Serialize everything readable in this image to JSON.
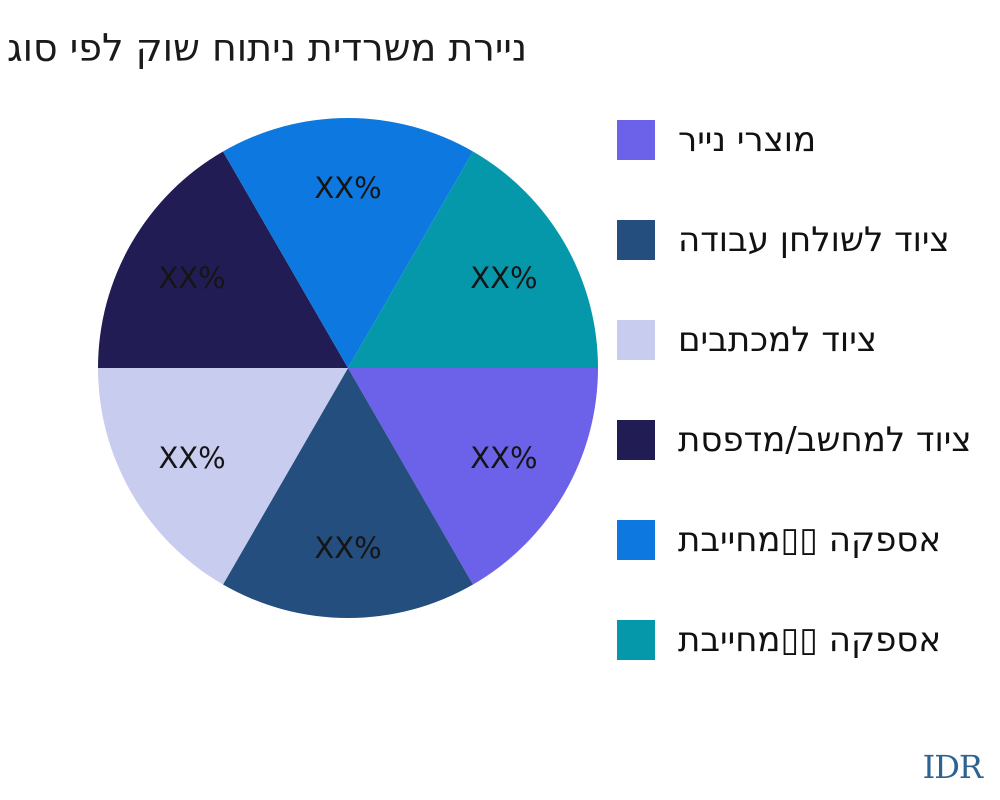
{
  "title": "ניירת משרדית ניתוח שוק לפי סוג",
  "watermark": "IDR",
  "chart_data": {
    "type": "pie",
    "title": "ניירת משרדית ניתוח שוק לפי סוג",
    "legend_position": "right",
    "start_angle_deg": 0,
    "direction": "clockwise",
    "data_labels_placeholder": "XX%",
    "segments": [
      {
        "label": "מוצרי נייר",
        "color": "#6C61E9",
        "value_pct": 16.67,
        "data_label": "XX%"
      },
      {
        "label": "ציוד לשולחן עבודה",
        "color": "#234E7D",
        "value_pct": 16.67,
        "data_label": "XX%"
      },
      {
        "label": "ציוד למכתבים",
        "color": "#C8CCEF",
        "value_pct": 16.67,
        "data_label": "XX%"
      },
      {
        "label": "ציוד למחשב/מדפסת",
        "color": "#221C54",
        "value_pct": 16.67,
        "data_label": "XX%"
      },
      {
        "label": "אספקה ▯▯מחייבת",
        "color": "#0D79E0",
        "value_pct": 16.67,
        "data_label": "XX%"
      },
      {
        "label": "אספקה ▯▯מחייבת",
        "color": "#0598AB",
        "value_pct": 16.67,
        "data_label": "XX%"
      }
    ]
  }
}
